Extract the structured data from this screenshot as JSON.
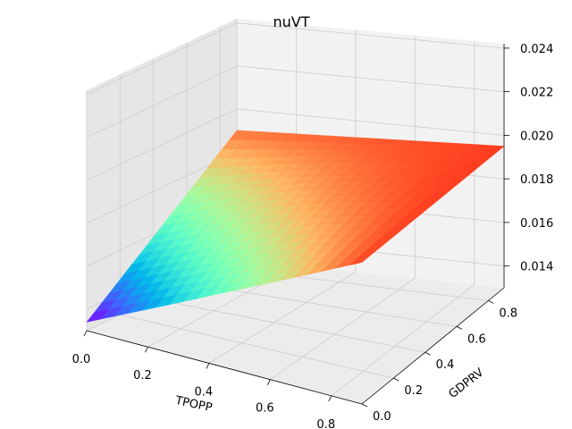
{
  "chart_data": {
    "type": "surface",
    "title": "nuVT",
    "xlabel": "TPOPP",
    "ylabel": "GDPRV",
    "zlabel": "",
    "x_ticks": [
      "0.0",
      "0.2",
      "0.4",
      "0.6",
      "0.8"
    ],
    "y_ticks": [
      "0.0",
      "0.2",
      "0.4",
      "0.6",
      "0.8"
    ],
    "z_ticks": [
      "0.014",
      "0.016",
      "0.018",
      "0.020",
      "0.022",
      "0.024"
    ],
    "xlim": [
      0,
      0.9
    ],
    "ylim": [
      0,
      0.9
    ],
    "zlim": [
      0.013,
      0.0242
    ],
    "grid": true,
    "colormap": "rainbow",
    "corner_values": [
      {
        "x": 0.0,
        "y": 0.0,
        "z": 0.0134
      },
      {
        "x": 0.0,
        "y": 0.9,
        "z": 0.019
      },
      {
        "x": 0.9,
        "y": 0.0,
        "z": 0.0195
      },
      {
        "x": 0.9,
        "y": 0.9,
        "z": 0.0195
      }
    ],
    "pane_color": "#f2f2f2",
    "grid_color": "#cccccc"
  }
}
